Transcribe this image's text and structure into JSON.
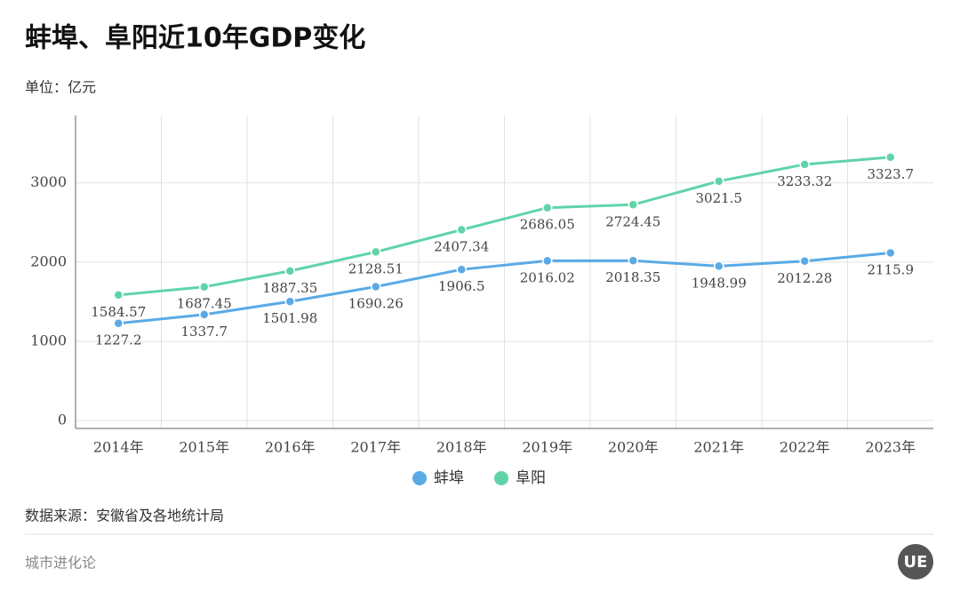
{
  "chart_data": {
    "type": "line",
    "title": "蚌埠、阜阳近10年GDP变化",
    "subtitle": "单位：亿元",
    "source": "数据来源：安徽省及各地统计局",
    "footer": "城市进化论",
    "logo": "UE",
    "categories": [
      "2014年",
      "2015年",
      "2016年",
      "2017年",
      "2018年",
      "2019年",
      "2020年",
      "2021年",
      "2022年",
      "2023年"
    ],
    "series": [
      {
        "name": "蚌埠",
        "color": "#5aaae6",
        "values": [
          1227.2,
          1337.7,
          1501.98,
          1690.26,
          1906.5,
          2016.02,
          2018.35,
          1948.99,
          2012.28,
          2115.9
        ]
      },
      {
        "name": "阜阳",
        "color": "#5fd4a8",
        "values": [
          1584.57,
          1687.45,
          1887.35,
          2128.51,
          2407.34,
          2686.05,
          2724.45,
          3021.5,
          3233.32,
          3323.7
        ]
      }
    ],
    "ylim": [
      -100,
      3850
    ],
    "yticks": [
      0,
      1000,
      2000,
      3000
    ],
    "grid": true
  }
}
